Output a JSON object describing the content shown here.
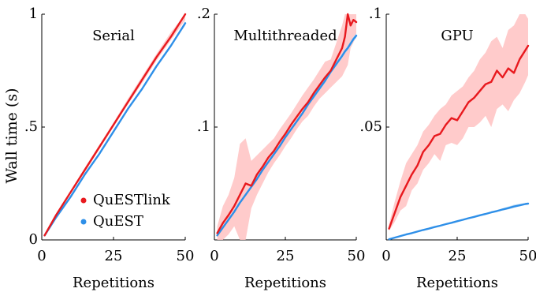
{
  "figure": {
    "ylabel": "Wall time (s)"
  },
  "legend": [
    {
      "label": "QuESTlink",
      "color": "#e8191e"
    },
    {
      "label": "QuEST",
      "color": "#2e8fe8"
    }
  ],
  "chart_data": [
    {
      "type": "line",
      "title": "Serial",
      "xlabel": "Repetitions",
      "ylabel": "Wall time (s)",
      "xlim": [
        0,
        50
      ],
      "ylim": [
        0,
        1
      ],
      "xticks": [
        0,
        25,
        50
      ],
      "xtick_labels": [
        "0",
        "25",
        "50"
      ],
      "yticks": [
        0,
        0.5,
        1
      ],
      "ytick_labels": [
        "0",
        ".5",
        "1"
      ],
      "x": [
        1,
        5,
        10,
        15,
        20,
        25,
        30,
        35,
        40,
        45,
        50
      ],
      "series": [
        {
          "name": "QuESTlink",
          "color": "#e8191e",
          "values": [
            0.02,
            0.11,
            0.21,
            0.31,
            0.41,
            0.51,
            0.61,
            0.71,
            0.81,
            0.9,
            1.0
          ],
          "band_low": [
            0.02,
            0.105,
            0.205,
            0.3,
            0.4,
            0.5,
            0.6,
            0.695,
            0.795,
            0.885,
            0.975
          ],
          "band_high": [
            0.025,
            0.115,
            0.215,
            0.32,
            0.42,
            0.52,
            0.625,
            0.725,
            0.825,
            0.92,
            1.0
          ]
        },
        {
          "name": "QuEST",
          "color": "#2e8fe8",
          "values": [
            0.02,
            0.1,
            0.19,
            0.29,
            0.38,
            0.48,
            0.58,
            0.67,
            0.77,
            0.86,
            0.96
          ],
          "band_low": [
            0.02,
            0.1,
            0.19,
            0.29,
            0.38,
            0.48,
            0.575,
            0.665,
            0.765,
            0.855,
            0.95
          ],
          "band_high": [
            0.02,
            0.1,
            0.19,
            0.29,
            0.38,
            0.48,
            0.585,
            0.675,
            0.775,
            0.865,
            0.97
          ]
        }
      ]
    },
    {
      "type": "line",
      "title": "Multithreaded",
      "xlabel": "Repetitions",
      "xlim": [
        0,
        50
      ],
      "ylim": [
        0,
        0.2
      ],
      "xticks": [
        0,
        25,
        50
      ],
      "xtick_labels": [
        "0",
        "25",
        "50"
      ],
      "yticks": [
        0,
        0.1,
        0.2
      ],
      "ytick_labels": [
        "",
        ".1",
        ".2"
      ],
      "x": [
        1,
        3,
        5,
        7,
        9,
        11,
        13,
        15,
        17,
        19,
        21,
        23,
        25,
        27,
        29,
        31,
        33,
        35,
        37,
        39,
        41,
        43,
        45,
        46,
        47,
        48,
        49,
        50
      ],
      "series": [
        {
          "name": "QuESTlink",
          "color": "#e8191e",
          "values": [
            0.006,
            0.015,
            0.022,
            0.03,
            0.04,
            0.05,
            0.048,
            0.058,
            0.065,
            0.073,
            0.079,
            0.087,
            0.094,
            0.102,
            0.109,
            0.116,
            0.122,
            0.13,
            0.137,
            0.144,
            0.15,
            0.16,
            0.17,
            0.18,
            0.2,
            0.19,
            0.195,
            0.193
          ],
          "band_low": [
            0.0,
            0.0,
            0.005,
            0.012,
            0.0,
            0.0,
            0.028,
            0.04,
            0.05,
            0.06,
            0.068,
            0.075,
            0.083,
            0.09,
            0.098,
            0.105,
            0.11,
            0.118,
            0.125,
            0.13,
            0.135,
            0.14,
            0.145,
            0.15,
            0.155,
            0.17,
            0.175,
            0.18
          ],
          "band_high": [
            0.012,
            0.03,
            0.04,
            0.055,
            0.085,
            0.09,
            0.07,
            0.075,
            0.08,
            0.085,
            0.09,
            0.098,
            0.105,
            0.112,
            0.12,
            0.128,
            0.135,
            0.142,
            0.15,
            0.158,
            0.16,
            0.175,
            0.19,
            0.2,
            0.2,
            0.2,
            0.2,
            0.2
          ]
        },
        {
          "name": "QuEST",
          "color": "#2e8fe8",
          "values": [
            0.004,
            0.011,
            0.018,
            0.025,
            0.033,
            0.04,
            0.047,
            0.054,
            0.062,
            0.069,
            0.076,
            0.083,
            0.091,
            0.098,
            0.105,
            0.112,
            0.12,
            0.127,
            0.134,
            0.141,
            0.149,
            0.156,
            0.163,
            0.167,
            0.17,
            0.174,
            0.178,
            0.181
          ],
          "band_low": [
            0.004,
            0.011,
            0.018,
            0.025,
            0.033,
            0.04,
            0.047,
            0.054,
            0.062,
            0.069,
            0.076,
            0.083,
            0.091,
            0.098,
            0.105,
            0.112,
            0.12,
            0.125,
            0.132,
            0.139,
            0.147,
            0.154,
            0.161,
            0.165,
            0.168,
            0.172,
            0.176,
            0.179
          ],
          "band_high": [
            0.004,
            0.011,
            0.018,
            0.025,
            0.033,
            0.04,
            0.047,
            0.054,
            0.062,
            0.069,
            0.076,
            0.083,
            0.091,
            0.098,
            0.105,
            0.112,
            0.12,
            0.129,
            0.136,
            0.143,
            0.151,
            0.158,
            0.165,
            0.169,
            0.172,
            0.176,
            0.18,
            0.183
          ]
        }
      ]
    },
    {
      "type": "line",
      "title": "GPU",
      "xlabel": "Repetitions",
      "xlim": [
        0,
        50
      ],
      "ylim": [
        0,
        0.1
      ],
      "xticks": [
        0,
        25,
        50
      ],
      "xtick_labels": [
        "0",
        "25",
        "50"
      ],
      "yticks": [
        0,
        0.05,
        0.1
      ],
      "ytick_labels": [
        "",
        ".05",
        ".1"
      ],
      "x": [
        1,
        3,
        5,
        7,
        9,
        11,
        13,
        15,
        17,
        19,
        21,
        23,
        25,
        27,
        29,
        31,
        33,
        35,
        37,
        39,
        41,
        43,
        45,
        47,
        49,
        50
      ],
      "series": [
        {
          "name": "QuESTlink",
          "color": "#e8191e",
          "values": [
            0.005,
            0.012,
            0.019,
            0.024,
            0.029,
            0.033,
            0.039,
            0.042,
            0.046,
            0.047,
            0.051,
            0.054,
            0.053,
            0.057,
            0.061,
            0.063,
            0.066,
            0.069,
            0.07,
            0.075,
            0.072,
            0.076,
            0.074,
            0.08,
            0.084,
            0.086
          ],
          "band_low": [
            0.004,
            0.008,
            0.013,
            0.015,
            0.022,
            0.025,
            0.031,
            0.034,
            0.038,
            0.035,
            0.042,
            0.043,
            0.042,
            0.045,
            0.05,
            0.05,
            0.052,
            0.055,
            0.05,
            0.058,
            0.06,
            0.057,
            0.062,
            0.065,
            0.07,
            0.073
          ],
          "band_high": [
            0.007,
            0.017,
            0.026,
            0.034,
            0.038,
            0.042,
            0.048,
            0.051,
            0.055,
            0.058,
            0.06,
            0.064,
            0.066,
            0.068,
            0.072,
            0.075,
            0.08,
            0.083,
            0.088,
            0.09,
            0.085,
            0.093,
            0.095,
            0.1,
            0.1,
            0.098
          ]
        },
        {
          "name": "QuEST",
          "color": "#2e8fe8",
          "values": [
            0.0003,
            0.001,
            0.0017,
            0.0024,
            0.003,
            0.0037,
            0.0044,
            0.005,
            0.0057,
            0.0063,
            0.007,
            0.0076,
            0.0083,
            0.0089,
            0.0096,
            0.0102,
            0.0109,
            0.0115,
            0.0122,
            0.0128,
            0.0135,
            0.0141,
            0.0148,
            0.0153,
            0.0159,
            0.0161
          ],
          "band_low": [
            0.0003,
            0.001,
            0.0017,
            0.0024,
            0.003,
            0.0037,
            0.0044,
            0.005,
            0.0057,
            0.0063,
            0.007,
            0.0076,
            0.0083,
            0.0089,
            0.0096,
            0.0102,
            0.0109,
            0.0115,
            0.0122,
            0.0128,
            0.013,
            0.0135,
            0.0142,
            0.0149,
            0.0155,
            0.0158
          ],
          "band_high": [
            0.0003,
            0.001,
            0.0017,
            0.0024,
            0.003,
            0.0037,
            0.0044,
            0.005,
            0.0057,
            0.0063,
            0.007,
            0.0076,
            0.0083,
            0.0089,
            0.0096,
            0.0102,
            0.0109,
            0.0115,
            0.0122,
            0.0128,
            0.014,
            0.0148,
            0.0156,
            0.016,
            0.0163,
            0.0164
          ]
        }
      ]
    }
  ]
}
